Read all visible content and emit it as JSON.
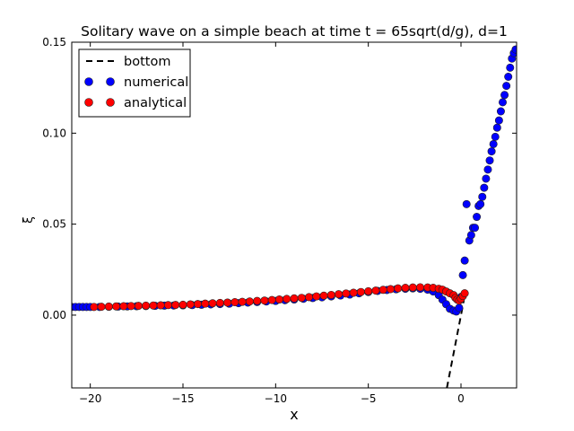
{
  "chart_data": {
    "type": "scatter",
    "title": "Solitary wave on a simple beach at time t = 65sqrt(d/g), d=1",
    "xlabel": "x",
    "ylabel": "ξ",
    "xlim": [
      -21,
      3
    ],
    "ylim": [
      -0.04,
      0.15
    ],
    "xticks": [
      -20,
      -15,
      -10,
      -5,
      0
    ],
    "yticks": [
      0.0,
      0.05,
      0.1,
      0.15
    ],
    "xtick_labels": [
      "−20",
      "−15",
      "−10",
      "−5",
      "0"
    ],
    "ytick_labels": [
      "0.00",
      "0.05",
      "0.10",
      "0.15"
    ],
    "grid": false,
    "legend": "top-left",
    "series": [
      {
        "name": "bottom",
        "style": "dashed-line",
        "color": "#000000",
        "x": [
          -0.76,
          0.0,
          0.15
        ],
        "y": [
          -0.04,
          0.0,
          0.008
        ]
      },
      {
        "name": "numerical",
        "style": "markers",
        "color": "#0000ff",
        "x": [
          -21.0,
          -20.8,
          -20.6,
          -20.4,
          -20.2,
          -20.0,
          -19.5,
          -19.0,
          -18.5,
          -18.0,
          -17.5,
          -17.0,
          -16.5,
          -16.0,
          -15.5,
          -15.0,
          -14.5,
          -14.0,
          -13.5,
          -13.0,
          -12.5,
          -12.0,
          -11.5,
          -11.0,
          -10.5,
          -10.0,
          -9.5,
          -9.0,
          -8.5,
          -8.0,
          -7.5,
          -7.0,
          -6.5,
          -6.0,
          -5.5,
          -5.0,
          -4.5,
          -4.0,
          -3.5,
          -3.0,
          -2.6,
          -2.2,
          -1.8,
          -1.5,
          -1.2,
          -1.0,
          -0.8,
          -0.6,
          -0.4,
          -0.25,
          -0.1,
          0.0,
          0.1,
          0.2,
          0.3,
          0.45,
          0.55,
          0.65,
          0.75,
          0.85,
          0.95,
          1.05,
          1.15,
          1.25,
          1.35,
          1.45,
          1.55,
          1.65,
          1.75,
          1.85,
          1.95,
          2.05,
          2.15,
          2.25,
          2.35,
          2.45,
          2.55,
          2.65,
          2.75,
          2.85,
          2.95
        ],
        "y": [
          0.0045,
          0.0045,
          0.0045,
          0.0045,
          0.0045,
          0.0045,
          0.0045,
          0.0046,
          0.0047,
          0.0048,
          0.0049,
          0.005,
          0.0051,
          0.0052,
          0.0053,
          0.0054,
          0.0055,
          0.0057,
          0.0059,
          0.0061,
          0.0063,
          0.0066,
          0.0069,
          0.0072,
          0.0075,
          0.0078,
          0.0082,
          0.0086,
          0.009,
          0.0094,
          0.0098,
          0.0103,
          0.0108,
          0.0113,
          0.012,
          0.0127,
          0.0133,
          0.0138,
          0.0142,
          0.0145,
          0.0147,
          0.0145,
          0.014,
          0.013,
          0.011,
          0.0085,
          0.006,
          0.0035,
          0.0025,
          0.002,
          0.004,
          0.01,
          0.022,
          0.03,
          0.061,
          0.041,
          0.044,
          0.048,
          0.048,
          0.054,
          0.06,
          0.061,
          0.065,
          0.07,
          0.075,
          0.08,
          0.085,
          0.09,
          0.094,
          0.098,
          0.103,
          0.107,
          0.112,
          0.117,
          0.121,
          0.126,
          0.131,
          0.136,
          0.141,
          0.144,
          0.146
        ]
      },
      {
        "name": "analytical",
        "style": "markers",
        "color": "#ff0000",
        "x": [
          -19.8,
          -19.4,
          -19.0,
          -18.6,
          -18.2,
          -17.8,
          -17.4,
          -17.0,
          -16.6,
          -16.2,
          -15.8,
          -15.4,
          -15.0,
          -14.6,
          -14.2,
          -13.8,
          -13.4,
          -13.0,
          -12.6,
          -12.2,
          -11.8,
          -11.4,
          -11.0,
          -10.6,
          -10.2,
          -9.8,
          -9.4,
          -9.0,
          -8.6,
          -8.2,
          -7.8,
          -7.4,
          -7.0,
          -6.6,
          -6.2,
          -5.8,
          -5.4,
          -5.0,
          -4.6,
          -4.2,
          -3.8,
          -3.4,
          -3.0,
          -2.6,
          -2.2,
          -1.8,
          -1.5,
          -1.2,
          -1.0,
          -0.8,
          -0.6,
          -0.4,
          -0.3,
          -0.2,
          -0.1,
          0.0,
          0.1,
          0.2
        ],
        "y": [
          0.0045,
          0.0046,
          0.0047,
          0.0048,
          0.0049,
          0.005,
          0.0051,
          0.0052,
          0.0053,
          0.0054,
          0.0055,
          0.0056,
          0.0057,
          0.0059,
          0.0061,
          0.0063,
          0.0065,
          0.0067,
          0.0069,
          0.0071,
          0.0073,
          0.0075,
          0.0078,
          0.008,
          0.0083,
          0.0086,
          0.0089,
          0.0092,
          0.0095,
          0.0099,
          0.0103,
          0.0107,
          0.0111,
          0.0115,
          0.0119,
          0.0123,
          0.0127,
          0.0131,
          0.0135,
          0.0139,
          0.0143,
          0.0147,
          0.015,
          0.0152,
          0.0153,
          0.0152,
          0.015,
          0.0145,
          0.014,
          0.013,
          0.012,
          0.011,
          0.0095,
          0.0085,
          0.008,
          0.009,
          0.0105,
          0.012
        ]
      }
    ]
  }
}
